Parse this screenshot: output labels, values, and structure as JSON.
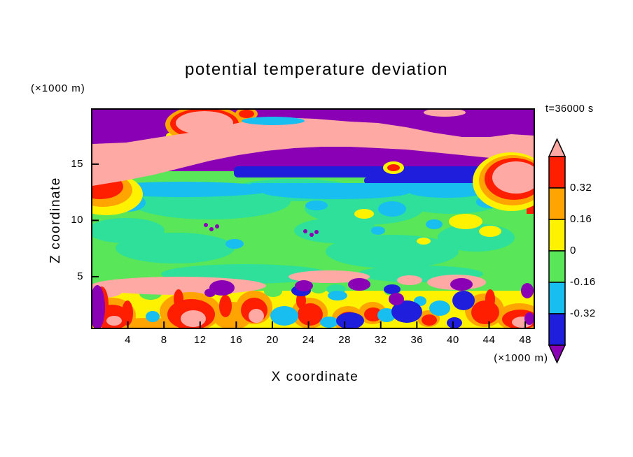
{
  "page": {
    "background": "#FFFFFF"
  },
  "chart_data": {
    "type": "heatmap",
    "title": "potential temperature deviation",
    "xlabel": "X coordinate",
    "ylabel": "Z coordinate",
    "x_unit_label": "(×1000 m)",
    "z_unit_label": "(×1000 m)",
    "time_label": "t=36000 s",
    "xlim": [
      0,
      49
    ],
    "ylim": [
      0.4,
      19.9
    ],
    "x_ticks": [
      4,
      8,
      12,
      16,
      20,
      24,
      28,
      32,
      36,
      40,
      44,
      48
    ],
    "y_ticks": [
      5,
      10,
      15
    ],
    "grid": false,
    "colorbar": {
      "position": "right",
      "levels": [
        "0.32",
        "0.16",
        "0",
        "-0.16",
        "-0.32"
      ],
      "segments_top_to_bottom": [
        {
          "color_name": "red",
          "value_range": "0.32 to 0.48"
        },
        {
          "color_name": "orange",
          "value_range": "0.16 to 0.32"
        },
        {
          "color_name": "yellow",
          "value_range": "0 to 0.16"
        },
        {
          "color_name": "green",
          "value_range": "-0.16 to 0"
        },
        {
          "color_name": "cyan",
          "value_range": "-0.32 to -0.16"
        },
        {
          "color_name": "blue",
          "value_range": "-0.48 to -0.32"
        }
      ],
      "over_arrow_color_name": "pink",
      "under_arrow_color_name": "purple"
    },
    "palette": {
      "pink": "#FFA9A4",
      "red": "#FF1E00",
      "orange": "#FFA400",
      "yellow": "#FFF200",
      "green": "#59E659",
      "mint": "#2EE09A",
      "cyan": "#18BEF0",
      "blue": "#1E1EDC",
      "purple": "#8A00B4"
    },
    "field_structure_top_to_bottom": [
      {
        "z_range_x1000m": "16 to 20",
        "description": "purple band (deviation below -0.48) crossed by a diagonal salmon streak (above +0.48) fringed by red, orange and yellow contours"
      },
      {
        "z_range_x1000m": "14 to 16",
        "description": "dark blue and purple stable layer band; salmon blob with red/orange rim at right edge"
      },
      {
        "z_range_x1000m": "4.5 to 14",
        "description": "near-zero field in green and mint-green with scattered cyan patches, small yellow maxima and tiny purple minima"
      },
      {
        "z_range_x1000m": "3.8 to 4.5",
        "description": "broken thin salmon band of strong positive deviation"
      },
      {
        "z_range_x1000m": "0 to 3.8",
        "description": "convective layer: yellow/orange background with red-salmon plume cores and cyan/blue/purple cold patches"
      }
    ]
  }
}
